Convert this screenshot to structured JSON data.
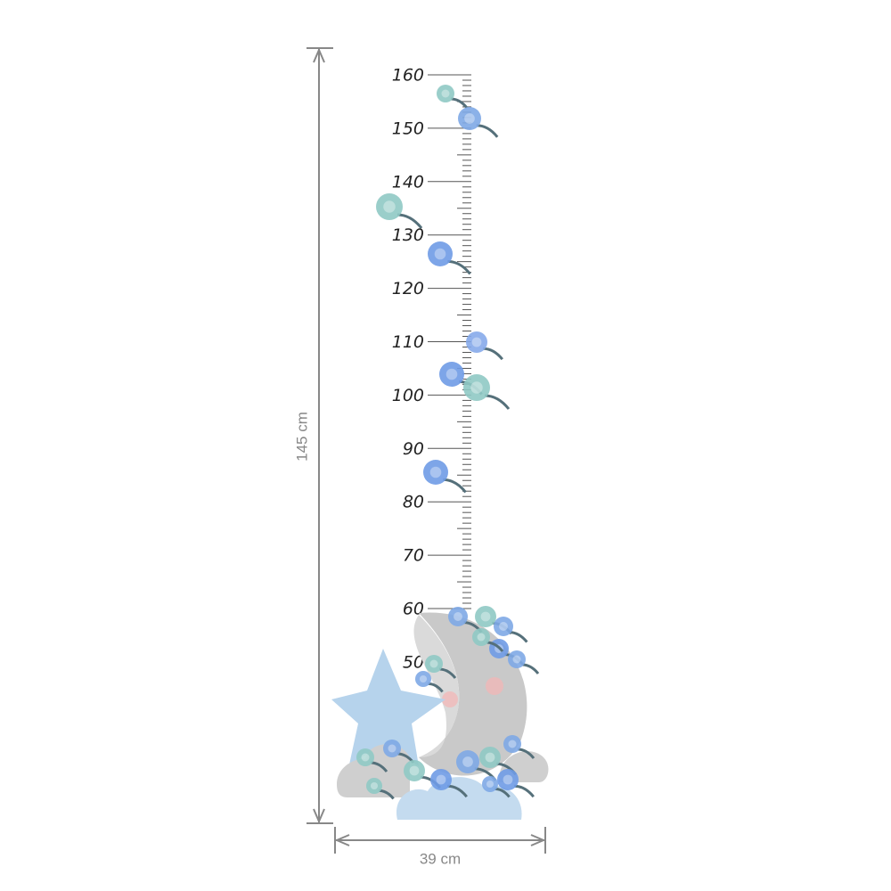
{
  "ruler": {
    "labels": [
      "160",
      "150",
      "140",
      "130",
      "120",
      "110",
      "100",
      "90",
      "80",
      "70",
      "60",
      "50"
    ]
  },
  "dimensions": {
    "height": "145 cm",
    "width": "39 cm"
  }
}
